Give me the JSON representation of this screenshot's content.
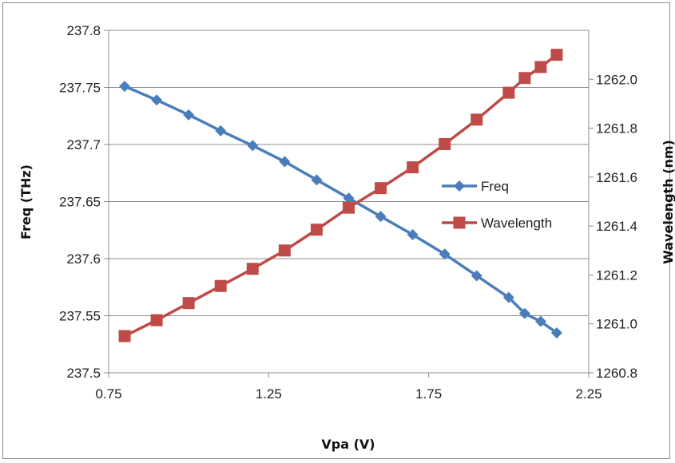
{
  "chart_data": {
    "type": "line",
    "title": "",
    "xlabel": "Vpa (V)",
    "ylabel": "Freq (THz)",
    "y2label": "Wavelength (nm)",
    "xlim": [
      0.75,
      2.25
    ],
    "ylim": [
      237.5,
      237.8
    ],
    "y2lim": [
      1260.8,
      1262.2
    ],
    "x_ticks": [
      "0.75",
      "1.25",
      "1.75",
      "2.25"
    ],
    "y_ticks": [
      "237.5",
      "237.55",
      "237.6",
      "237.65",
      "237.7",
      "237.75",
      "237.8"
    ],
    "y2_ticks": [
      "1260.8",
      "1261.0",
      "1261.2",
      "1261.4",
      "1261.6",
      "1261.8",
      "1262.0"
    ],
    "grid": "horizontal",
    "legend_position": "right",
    "x": [
      0.8,
      0.9,
      1.0,
      1.1,
      1.2,
      1.3,
      1.4,
      1.5,
      1.6,
      1.7,
      1.8,
      1.9,
      2.0,
      2.05,
      2.1,
      2.15
    ],
    "series": [
      {
        "name": "Freq",
        "axis": "left",
        "color": "#4a7ebb",
        "marker": "diamond",
        "values": [
          237.751,
          237.739,
          237.726,
          237.712,
          237.699,
          237.685,
          237.669,
          237.653,
          237.637,
          237.621,
          237.604,
          237.585,
          237.566,
          237.552,
          237.545,
          237.535
        ]
      },
      {
        "name": "Wavelength",
        "axis": "right",
        "color": "#be4b48",
        "marker": "square",
        "values": [
          1260.95,
          1261.015,
          1261.085,
          1261.155,
          1261.225,
          1261.3,
          1261.385,
          1261.475,
          1261.555,
          1261.64,
          1261.735,
          1261.835,
          1261.945,
          1262.005,
          1262.05,
          1262.1
        ]
      }
    ]
  }
}
